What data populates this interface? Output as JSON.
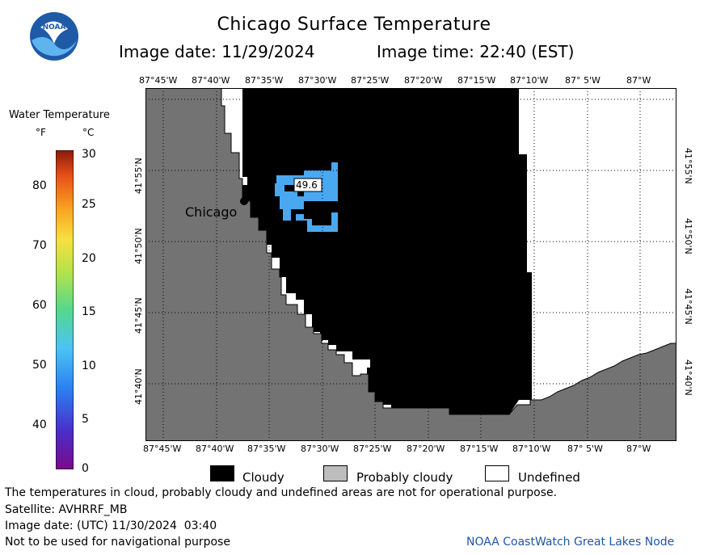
{
  "header": {
    "title": "Chicago Surface Temperature",
    "image_date_label": "Image date: 11/29/2024",
    "image_time_label": "Image time: 22:40 (EST)"
  },
  "logo": {
    "text": "NOAA"
  },
  "colorbar": {
    "title": "Water Temperature",
    "unit_f": "°F",
    "unit_c": "°C",
    "f_ticks": [
      "80",
      "70",
      "60",
      "50",
      "40"
    ],
    "c_ticks": [
      "30",
      "25",
      "20",
      "15",
      "10",
      "5",
      "0"
    ],
    "range_c": [
      0,
      30
    ]
  },
  "map": {
    "lon_labels": [
      "87°45'W",
      "87°40'W",
      "87°35'W",
      "87°30'W",
      "87°25'W",
      "87°20'W",
      "87°15'W",
      "87°10'W",
      "87° 5'W",
      "87°W"
    ],
    "lat_labels": [
      "41°55'N",
      "41°50'N",
      "41°45'N",
      "41°40'N"
    ],
    "city_label": "Chicago",
    "temperature_readout": "49.6",
    "colors": {
      "land": "#737373",
      "cloudy": "#000000",
      "water_warm": "#4aa8f0",
      "undefined": "#ffffff"
    }
  },
  "legend": {
    "items": [
      {
        "label": "Cloudy",
        "color": "#000000"
      },
      {
        "label": "Probably cloudy",
        "color": "#bdbdbd"
      },
      {
        "label": "Undefined",
        "color": "#ffffff"
      }
    ]
  },
  "footer": {
    "disclaimer": "The temperatures in cloud, probably cloudy and undefined areas are not for operational purpose.",
    "satellite": "Satellite: AVHRRF_MB",
    "utc_date": "Image date: (UTC) 11/30/2024  03:40",
    "navigation": "Not to be used for navigational purpose",
    "credit": "NOAA CoastWatch Great Lakes Node"
  }
}
